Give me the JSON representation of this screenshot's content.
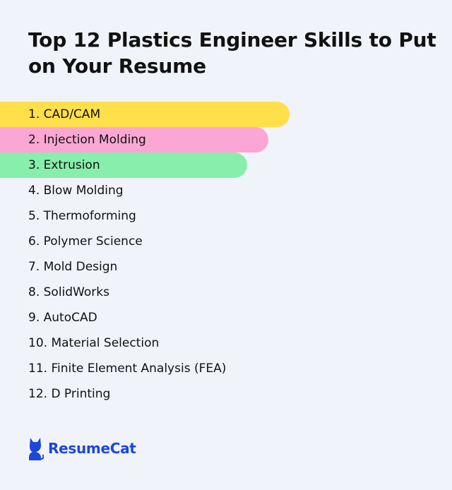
{
  "title": "Top 12 Plastics Engineer Skills to Put on Your Resume",
  "skills": [
    "1. CAD/CAM",
    "2. Injection Molding",
    "3. Extrusion",
    "4. Blow Molding",
    "5. Thermoforming",
    "6. Polymer Science",
    "7. Mold Design",
    "8. SolidWorks",
    "9. AutoCAD",
    "10. Material Selection",
    "11. Finite Element Analysis (FEA)",
    "12. D Printing"
  ],
  "highlight_colors": [
    "#ffe04b",
    "#fba6d4",
    "#87eeab"
  ],
  "brand": {
    "name": "ResumeCat",
    "icon": "cat-icon",
    "color": "#1d47d8"
  }
}
